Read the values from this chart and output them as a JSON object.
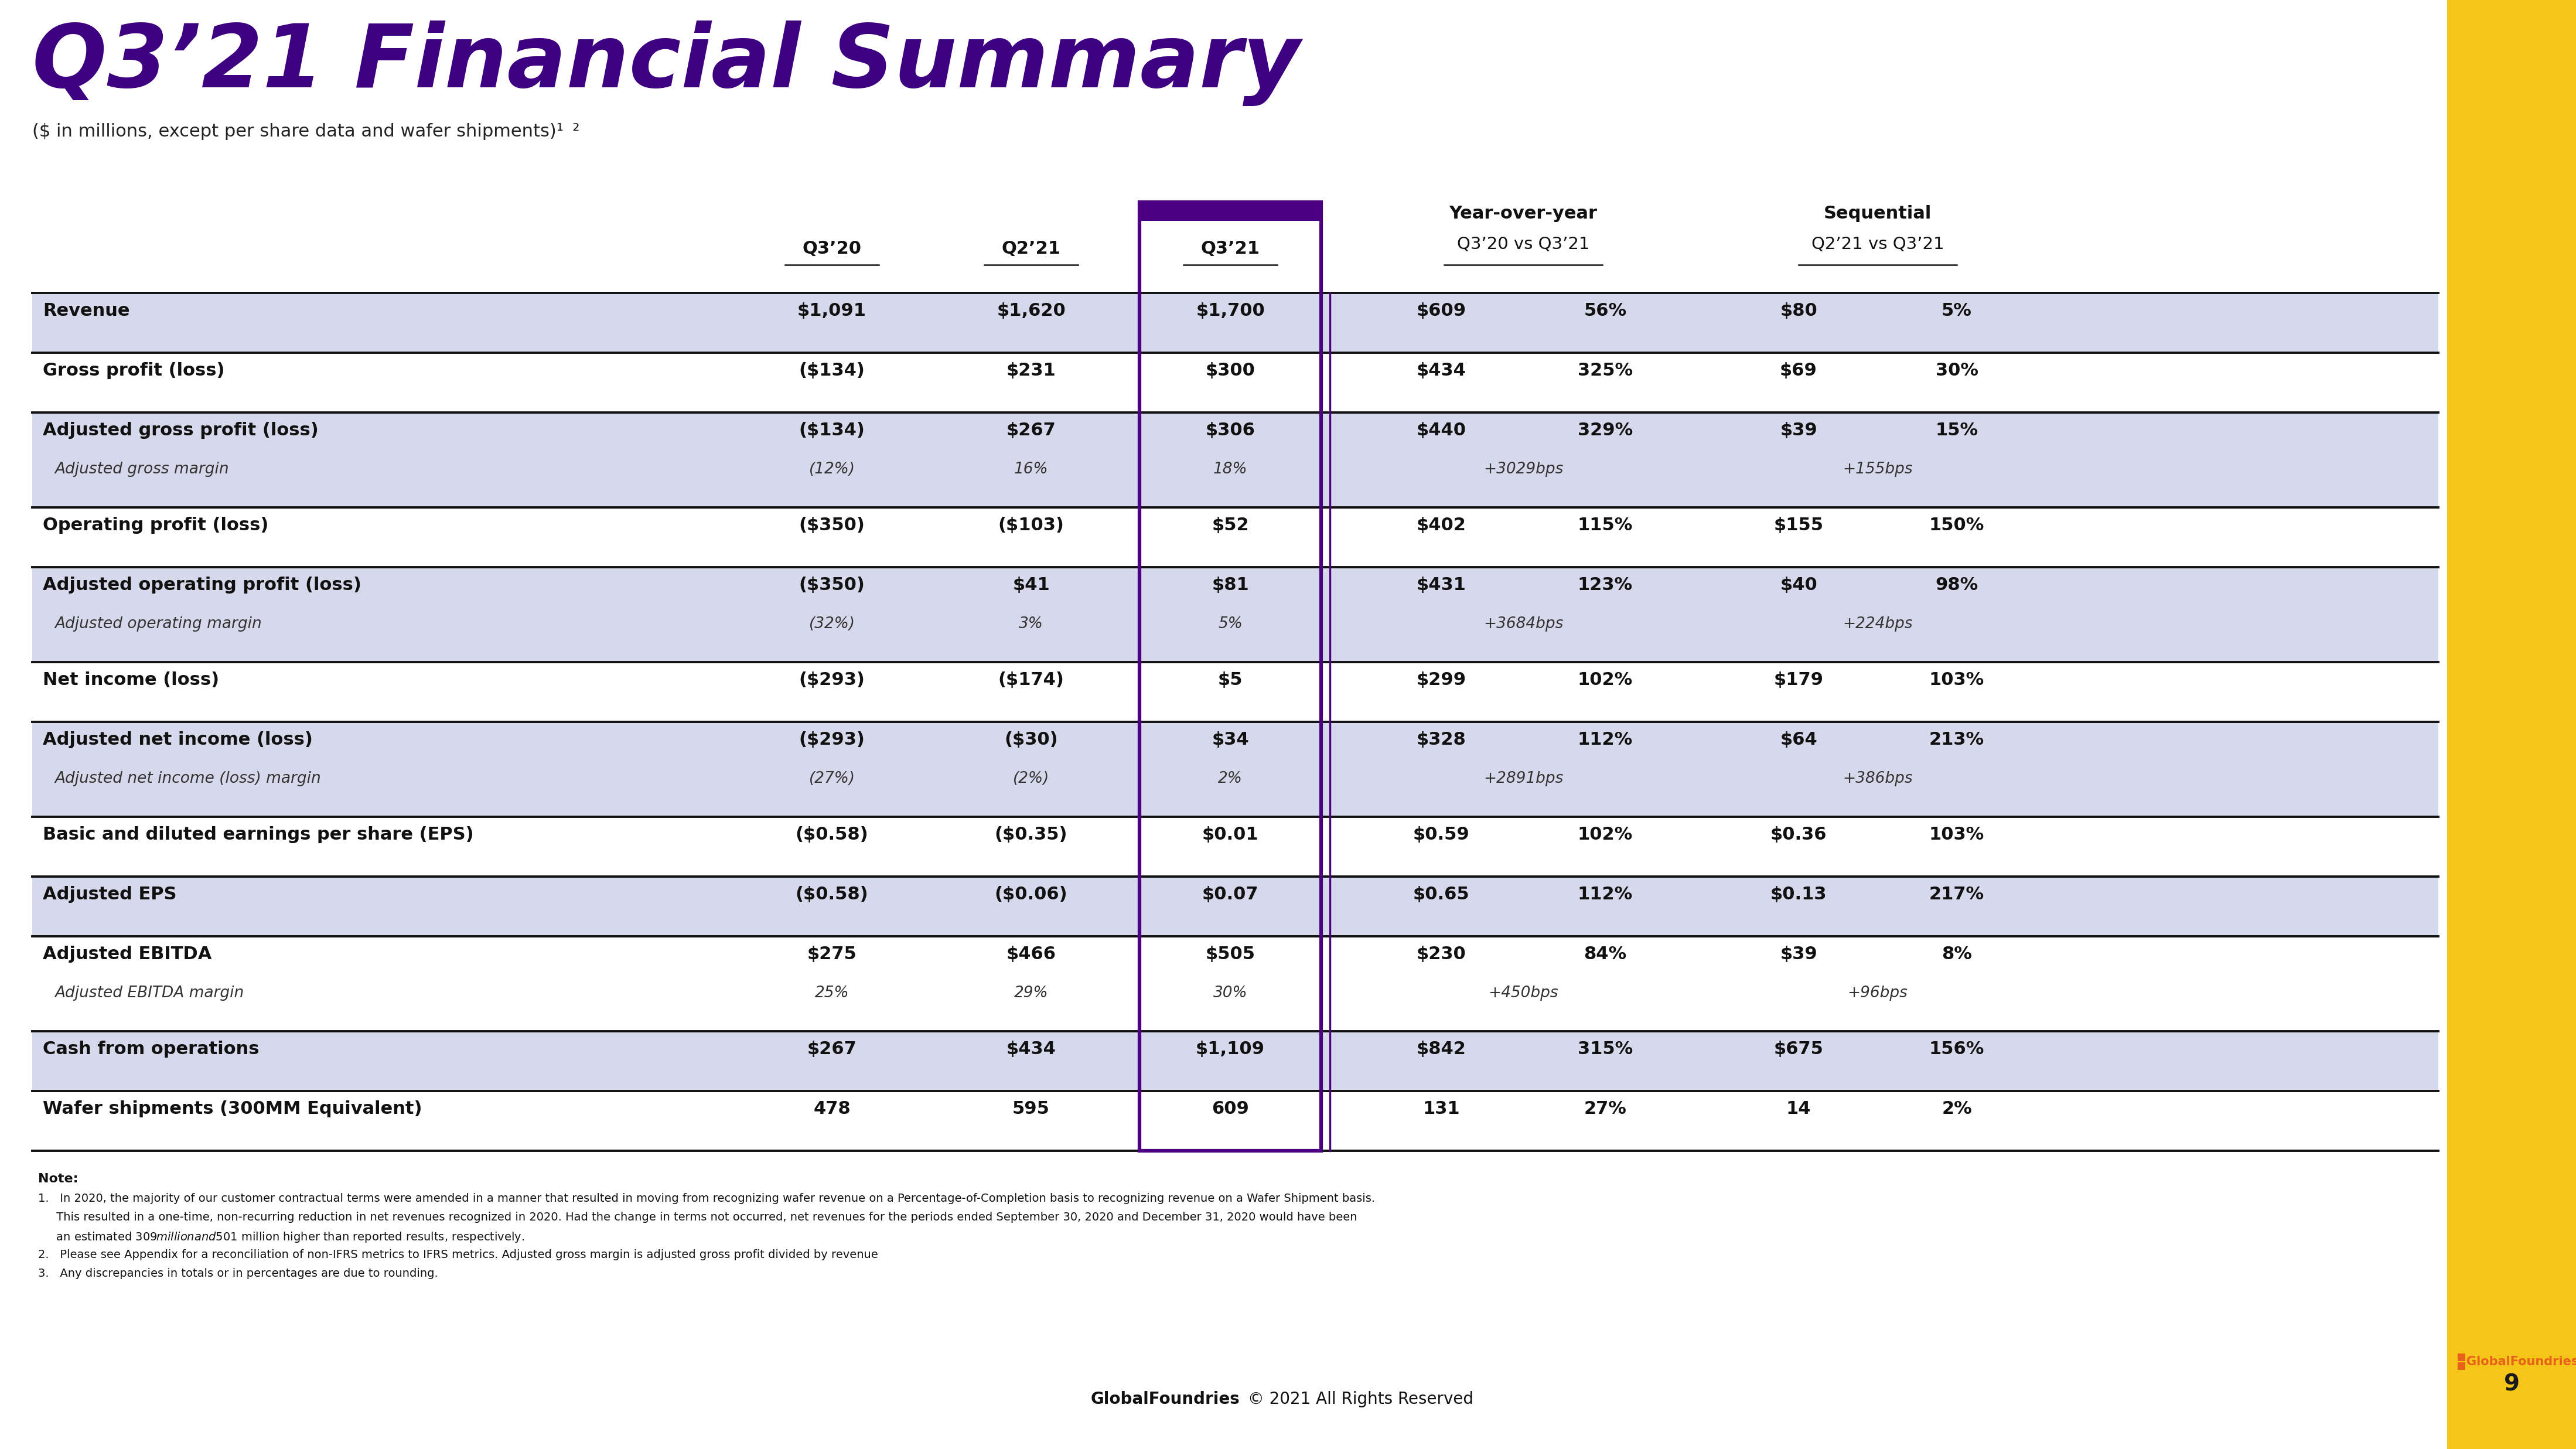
{
  "title": "Q3’21 Financial Summary",
  "subtitle": "($ in millions, except per share data and wafer shipments)¹ ²",
  "background_color": "#ffffff",
  "title_color": "#3d0080",
  "yellow_bar_color": "#F5C518",
  "highlight_box_color": "#4B0082",
  "rows": [
    {
      "label": "Revenue",
      "bg": "#d6d9eb",
      "q320": "$1,091",
      "q221": "$1,620",
      "q321": "$1,700",
      "yoy_abs": "$609",
      "yoy_pct": "56%",
      "seq_abs": "$80",
      "seq_pct": "5%",
      "sub_label": null,
      "sub_q320": null,
      "sub_q221": null,
      "sub_q321": null,
      "sub_yoy": null,
      "sub_seq": null
    },
    {
      "label": "Gross profit (loss)",
      "bg": "#ffffff",
      "q320": "($134)",
      "q221": "$231",
      "q321": "$300",
      "yoy_abs": "$434",
      "yoy_pct": "325%",
      "seq_abs": "$69",
      "seq_pct": "30%",
      "sub_label": null,
      "sub_q320": null,
      "sub_q221": null,
      "sub_q321": null,
      "sub_yoy": null,
      "sub_seq": null
    },
    {
      "label": "Adjusted gross profit (loss)",
      "bg": "#d6d9eb",
      "q320": "($134)",
      "q221": "$267",
      "q321": "$306",
      "yoy_abs": "$440",
      "yoy_pct": "329%",
      "seq_abs": "$39",
      "seq_pct": "15%",
      "sub_label": "Adjusted gross margin",
      "sub_q320": "(12%)",
      "sub_q221": "16%",
      "sub_q321": "18%",
      "sub_yoy": "+3029bps",
      "sub_seq": "+155bps"
    },
    {
      "label": "Operating profit (loss)",
      "bg": "#ffffff",
      "q320": "($350)",
      "q221": "($103)",
      "q321": "$52",
      "yoy_abs": "$402",
      "yoy_pct": "115%",
      "seq_abs": "$155",
      "seq_pct": "150%",
      "sub_label": null,
      "sub_q320": null,
      "sub_q221": null,
      "sub_q321": null,
      "sub_yoy": null,
      "sub_seq": null
    },
    {
      "label": "Adjusted operating profit (loss)",
      "bg": "#d6d9eb",
      "q320": "($350)",
      "q221": "$41",
      "q321": "$81",
      "yoy_abs": "$431",
      "yoy_pct": "123%",
      "seq_abs": "$40",
      "seq_pct": "98%",
      "sub_label": "Adjusted operating margin",
      "sub_q320": "(32%)",
      "sub_q221": "3%",
      "sub_q321": "5%",
      "sub_yoy": "+3684bps",
      "sub_seq": "+224bps"
    },
    {
      "label": "Net income (loss)",
      "bg": "#ffffff",
      "q320": "($293)",
      "q221": "($174)",
      "q321": "$5",
      "yoy_abs": "$299",
      "yoy_pct": "102%",
      "seq_abs": "$179",
      "seq_pct": "103%",
      "sub_label": null,
      "sub_q320": null,
      "sub_q221": null,
      "sub_q321": null,
      "sub_yoy": null,
      "sub_seq": null
    },
    {
      "label": "Adjusted net income (loss)",
      "bg": "#d6d9eb",
      "q320": "($293)",
      "q221": "($30)",
      "q321": "$34",
      "yoy_abs": "$328",
      "yoy_pct": "112%",
      "seq_abs": "$64",
      "seq_pct": "213%",
      "sub_label": "Adjusted net income (loss) margin",
      "sub_q320": "(27%)",
      "sub_q221": "(2%)",
      "sub_q321": "2%",
      "sub_yoy": "+2891bps",
      "sub_seq": "+386bps"
    },
    {
      "label": "Basic and diluted earnings per share (EPS)",
      "bg": "#ffffff",
      "q320": "($0.58)",
      "q221": "($0.35)",
      "q321": "$0.01",
      "yoy_abs": "$0.59",
      "yoy_pct": "102%",
      "seq_abs": "$0.36",
      "seq_pct": "103%",
      "sub_label": null,
      "sub_q320": null,
      "sub_q221": null,
      "sub_q321": null,
      "sub_yoy": null,
      "sub_seq": null
    },
    {
      "label": "Adjusted EPS",
      "bg": "#d6d9eb",
      "q320": "($0.58)",
      "q221": "($0.06)",
      "q321": "$0.07",
      "yoy_abs": "$0.65",
      "yoy_pct": "112%",
      "seq_abs": "$0.13",
      "seq_pct": "217%",
      "sub_label": null,
      "sub_q320": null,
      "sub_q221": null,
      "sub_q321": null,
      "sub_yoy": null,
      "sub_seq": null
    },
    {
      "label": "Adjusted EBITDA",
      "bg": "#ffffff",
      "q320": "$275",
      "q221": "$466",
      "q321": "$505",
      "yoy_abs": "$230",
      "yoy_pct": "84%",
      "seq_abs": "$39",
      "seq_pct": "8%",
      "sub_label": "Adjusted EBITDA margin",
      "sub_q320": "25%",
      "sub_q221": "29%",
      "sub_q321": "30%",
      "sub_yoy": "+450bps",
      "sub_seq": "+96bps"
    },
    {
      "label": "Cash from operations",
      "bg": "#d6d9eb",
      "q320": "$267",
      "q221": "$434",
      "q321": "$1,109",
      "yoy_abs": "$842",
      "yoy_pct": "315%",
      "seq_abs": "$675",
      "seq_pct": "156%",
      "sub_label": null,
      "sub_q320": null,
      "sub_q221": null,
      "sub_q321": null,
      "sub_yoy": null,
      "sub_seq": null
    },
    {
      "label": "Wafer shipments (300MM Equivalent)",
      "bg": "#ffffff",
      "q320": "478",
      "q221": "595",
      "q321": "609",
      "yoy_abs": "131",
      "yoy_pct": "27%",
      "seq_abs": "14",
      "seq_pct": "2%",
      "sub_label": null,
      "sub_q320": null,
      "sub_q221": null,
      "sub_q321": null,
      "sub_yoy": null,
      "sub_seq": null
    }
  ],
  "note_bold": "Note:",
  "notes": [
    "1.   In 2020, the majority of our customer contractual terms were amended in a manner that resulted in moving from recognizing wafer revenue on a Percentage-of-Completion basis to recognizing revenue on a Wafer Shipment basis.",
    "     This resulted in a one-time, non-recurring reduction in net revenues recognized in 2020. Had the change in terms not occurred, net revenues for the periods ended September 30, 2020 and December 31, 2020 would have been",
    "     an estimated $309 million and $501 million higher than reported results, respectively.",
    "2.   Please see Appendix for a reconciliation of non-IFRS metrics to IFRS metrics. Adjusted gross margin is adjusted gross profit divided by revenue",
    "3.   Any discrepancies in totals or in percentages are due to rounding."
  ],
  "footer_bold": "GlobalFoundries",
  "footer_rest": " © 2021 All Rights Reserved",
  "page_number": "9"
}
